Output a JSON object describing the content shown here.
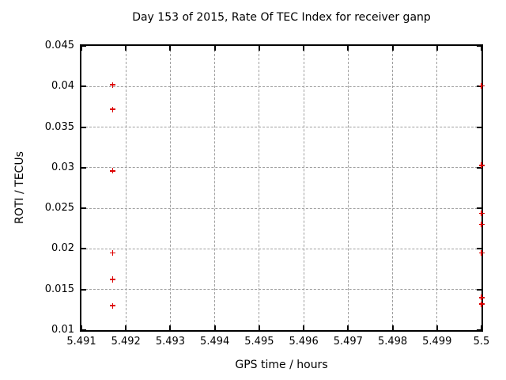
{
  "chart_data": {
    "type": "scatter",
    "title": "Day 153 of 2015, Rate Of TEC Index for receiver ganp",
    "xlabel": "GPS time / hours",
    "ylabel": "ROTI / TECUs",
    "xlim": [
      5.491,
      5.5
    ],
    "ylim": [
      0.01,
      0.045
    ],
    "xticks": [
      5.491,
      5.492,
      5.493,
      5.494,
      5.495,
      5.496,
      5.497,
      5.498,
      5.499,
      5.5
    ],
    "xtick_labels": [
      "5.491",
      "5.492",
      "5.493",
      "5.494",
      "5.495",
      "5.496",
      "5.497",
      "5.498",
      "5.499",
      "5.5"
    ],
    "yticks": [
      0.01,
      0.015,
      0.02,
      0.025,
      0.03,
      0.035,
      0.04,
      0.045
    ],
    "ytick_labels": [
      "0.01",
      "0.015",
      "0.02",
      "0.025",
      "0.03",
      "0.035",
      "0.04",
      "0.045"
    ],
    "grid": true,
    "legend": "none",
    "marker": "plus",
    "marker_color": "#dd0000",
    "grid_color": "#9f9f9f",
    "axis_color": "#000000",
    "series": [
      {
        "name": "ROTI",
        "points": [
          {
            "x": 5.4917,
            "y": 0.0402
          },
          {
            "x": 5.4917,
            "y": 0.0372
          },
          {
            "x": 5.4917,
            "y": 0.0296
          },
          {
            "x": 5.4917,
            "y": 0.0195
          },
          {
            "x": 5.4917,
            "y": 0.0163
          },
          {
            "x": 5.4917,
            "y": 0.0162
          },
          {
            "x": 5.4917,
            "y": 0.013
          },
          {
            "x": 5.5,
            "y": 0.0401
          },
          {
            "x": 5.5,
            "y": 0.0303
          },
          {
            "x": 5.5,
            "y": 0.0244
          },
          {
            "x": 5.5,
            "y": 0.023
          },
          {
            "x": 5.5,
            "y": 0.0195
          },
          {
            "x": 5.5,
            "y": 0.014
          },
          {
            "x": 5.5,
            "y": 0.0132
          }
        ]
      }
    ]
  }
}
